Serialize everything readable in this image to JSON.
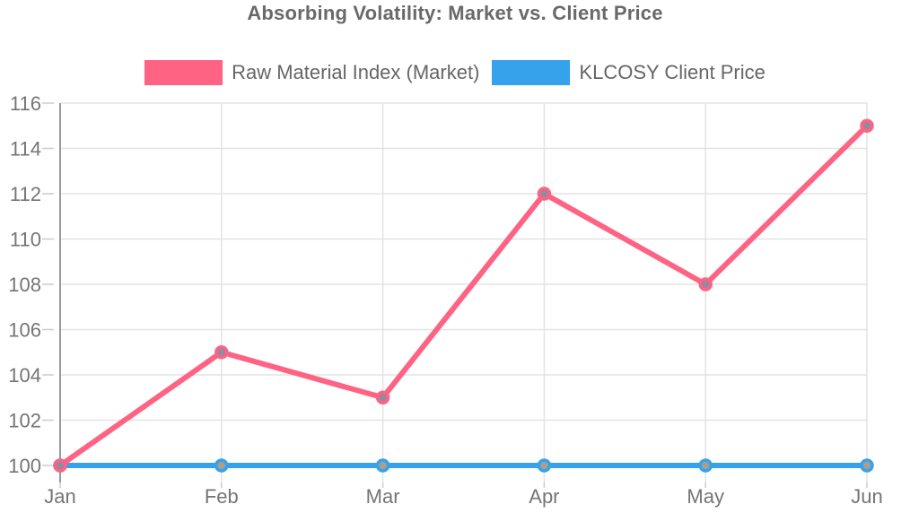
{
  "title": "Absorbing Volatility: Market vs. Client Price",
  "legend": [
    {
      "label": "Raw Material Index (Market)",
      "color": "#FF6384"
    },
    {
      "label": "KLCOSY Client Price",
      "color": "#36A2EB"
    }
  ],
  "chart_data": {
    "type": "line",
    "title": "Absorbing Volatility: Market vs. Client Price",
    "categories": [
      "Jan",
      "Feb",
      "Mar",
      "Apr",
      "May",
      "Jun"
    ],
    "series": [
      {
        "name": "Raw Material Index (Market)",
        "color": "#FF6384",
        "point_fill": "#97889E",
        "values": [
          100,
          105,
          103,
          112,
          108,
          115
        ]
      },
      {
        "name": "KLCOSY Client Price",
        "color": "#36A2EB",
        "point_fill": "#AC9E8C",
        "values": [
          100,
          100,
          100,
          100,
          100,
          100
        ]
      }
    ],
    "xlabel": "",
    "ylabel": "",
    "ylim": [
      100,
      116
    ],
    "yticks": [
      100,
      102,
      104,
      106,
      108,
      110,
      112,
      114,
      116
    ],
    "grid": true,
    "legend_position": "top",
    "colors": {
      "grid": "#E3E3E3",
      "tick": "#CCCCCC",
      "axis": "#999999",
      "tick_label": "#757575",
      "title": "#696969",
      "legend_text": "#666666",
      "background": "#FFFFFF"
    }
  }
}
